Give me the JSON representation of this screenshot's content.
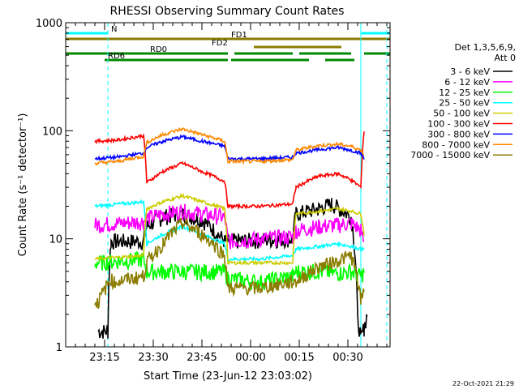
{
  "chart_data": {
    "type": "line",
    "title": "RHESSI Observing Summary Count Rates",
    "xlabel": "Start Time (23-Jun-12 23:03:02)",
    "ylabel": "Count Rate (s⁻¹ detector⁻¹)",
    "y_scale": "log",
    "ylim": [
      1,
      1000
    ],
    "y_ticks": [
      1,
      10,
      100,
      1000
    ],
    "y_tick_labels": [
      "1",
      "10",
      "100",
      "1000"
    ],
    "xlim_minutes": [
      0,
      100
    ],
    "x_ticks": [
      12,
      27,
      42,
      57,
      72,
      87
    ],
    "x_tick_labels": [
      "23:15",
      "23:30",
      "23:45",
      "00:00",
      "00:15",
      "00:30"
    ],
    "grid": false,
    "legend_header": [
      "Det 1,3,5,6,9,",
      "Att 0"
    ],
    "legend_placement": "right",
    "timestamp": "22-Oct-2021 21:29",
    "series": [
      {
        "name": "3 - 6 keV",
        "color": "#000000",
        "x": [
          0,
          9,
          10,
          13,
          14,
          24,
          25,
          30,
          36,
          42,
          49,
          50,
          70,
          71,
          78,
          82,
          88,
          90,
          91,
          92,
          93,
          94
        ],
        "y": [
          null,
          null,
          1.4,
          1.4,
          9.5,
          9.5,
          13,
          16,
          17,
          15,
          9.5,
          9.5,
          10,
          17,
          19,
          21,
          16,
          1.8,
          1.2,
          1.5,
          2,
          null
        ]
      },
      {
        "name": "6 - 12 keV",
        "color": "#ff00ff",
        "x": [
          9,
          24,
          25,
          30,
          36,
          42,
          49,
          50,
          60,
          70,
          71,
          78,
          84,
          88,
          91,
          92,
          93,
          94
        ],
        "y": [
          13.5,
          14.5,
          15.5,
          17,
          18,
          17,
          16,
          9.5,
          10,
          10.5,
          12,
          13,
          13.5,
          14,
          12,
          9,
          null,
          null
        ]
      },
      {
        "name": "12 - 25 keV",
        "color": "#00ff00",
        "x": [
          9,
          24,
          25,
          30,
          36,
          42,
          49,
          50,
          60,
          70,
          71,
          78,
          84,
          88,
          91,
          92,
          93
        ],
        "y": [
          6,
          6.5,
          5,
          5,
          5,
          5,
          5,
          4.3,
          4,
          4.5,
          5,
          5,
          4.8,
          5,
          4.5,
          5,
          null
        ]
      },
      {
        "name": "25 - 50 keV",
        "color": "#00ffff",
        "x": [
          9,
          24,
          25,
          30,
          36,
          42,
          49,
          50,
          60,
          70,
          71,
          78,
          84,
          88,
          91,
          92,
          93
        ],
        "y": [
          20,
          22,
          9,
          11,
          13,
          11,
          9,
          6.5,
          6.5,
          7,
          8,
          8.5,
          9,
          8.5,
          8,
          8,
          null
        ]
      },
      {
        "name": "50 - 100 keV",
        "color": "#cccc00",
        "x": [
          9,
          24,
          25,
          30,
          36,
          42,
          49,
          50,
          60,
          70,
          71,
          78,
          84,
          88,
          91,
          92,
          93
        ],
        "y": [
          6.5,
          7,
          19,
          22,
          25,
          22,
          19,
          6,
          6,
          6,
          17,
          18,
          19,
          18,
          17,
          11,
          null
        ]
      },
      {
        "name": "100 - 300 keV",
        "color": "#ff0000",
        "x": [
          9,
          16,
          24,
          25,
          30,
          36,
          42,
          49,
          50,
          60,
          70,
          71,
          78,
          84,
          88,
          91,
          92,
          93
        ],
        "y": [
          80,
          82,
          90,
          33,
          42,
          50,
          42,
          34,
          20,
          20,
          21,
          30,
          38,
          40,
          35,
          30,
          100,
          null
        ]
      },
      {
        "name": "300 - 800 keV",
        "color": "#0000ff",
        "x": [
          9,
          16,
          24,
          25,
          30,
          36,
          42,
          49,
          50,
          60,
          70,
          71,
          78,
          84,
          88,
          91,
          92,
          93
        ],
        "y": [
          55,
          57,
          62,
          70,
          80,
          88,
          80,
          72,
          55,
          55,
          57,
          62,
          67,
          70,
          66,
          62,
          55,
          null
        ]
      },
      {
        "name": "800 - 7000 keV",
        "color": "#ff8800",
        "x": [
          9,
          16,
          24,
          25,
          30,
          36,
          42,
          49,
          50,
          60,
          70,
          71,
          78,
          84,
          88,
          91,
          92,
          93
        ],
        "y": [
          50,
          52,
          58,
          78,
          92,
          104,
          92,
          80,
          52,
          52,
          54,
          66,
          73,
          75,
          72,
          66,
          60,
          null
        ]
      },
      {
        "name": "7000 - 15000 keV",
        "color": "#8b7d00",
        "x": [
          9,
          10,
          14,
          15,
          24,
          25,
          30,
          36,
          42,
          49,
          50,
          60,
          70,
          71,
          78,
          82,
          88,
          91,
          92,
          93
        ],
        "y": [
          2.6,
          2.6,
          4.2,
          4,
          4.5,
          6,
          9,
          14,
          11,
          7,
          3.5,
          3.5,
          4,
          4,
          5.5,
          6,
          7,
          2.6,
          3.5,
          null
        ]
      }
    ],
    "status_bars": [
      {
        "label": "N",
        "color": "#00ffff",
        "segments": [
          [
            0,
            13
          ],
          [
            91,
            100
          ]
        ]
      },
      {
        "label": "FD1",
        "color": "#8b7d00",
        "segments": [
          [
            0,
            100
          ]
        ]
      },
      {
        "label": "FD2",
        "color": "#8b7d00",
        "segments": [
          [
            58,
            85
          ]
        ]
      },
      {
        "label": "RD0",
        "color": "#008800",
        "segments": [
          [
            0,
            50
          ],
          [
            52,
            70
          ],
          [
            72,
            88
          ],
          [
            92,
            100
          ]
        ]
      },
      {
        "label": "RD6",
        "color": "#008800",
        "segments": [
          [
            12,
            50
          ],
          [
            51,
            75
          ],
          [
            80,
            89
          ]
        ]
      }
    ],
    "boundary_lines": [
      {
        "style": "dashed",
        "x": 13
      },
      {
        "style": "solid",
        "x": 91
      },
      {
        "style": "dashed",
        "x": 99
      }
    ]
  }
}
